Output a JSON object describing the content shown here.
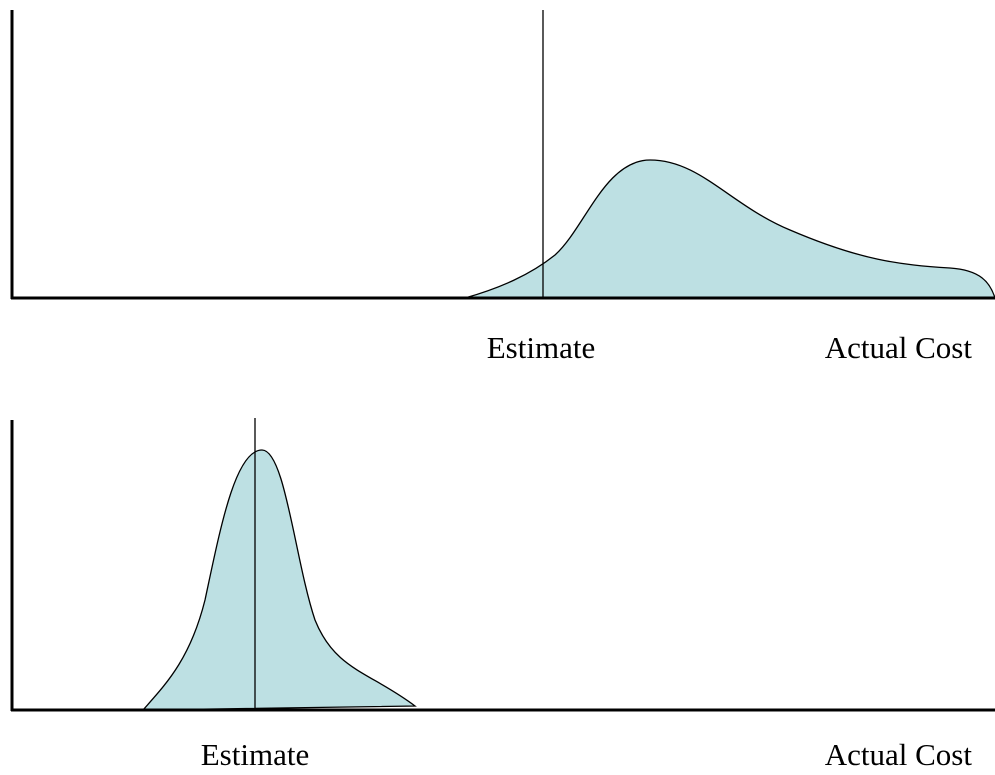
{
  "panels": [
    {
      "estimate_label": "Estimate",
      "axis_label": "Actual Cost"
    },
    {
      "estimate_label": "Estimate",
      "axis_label": "Actual Cost"
    }
  ]
}
